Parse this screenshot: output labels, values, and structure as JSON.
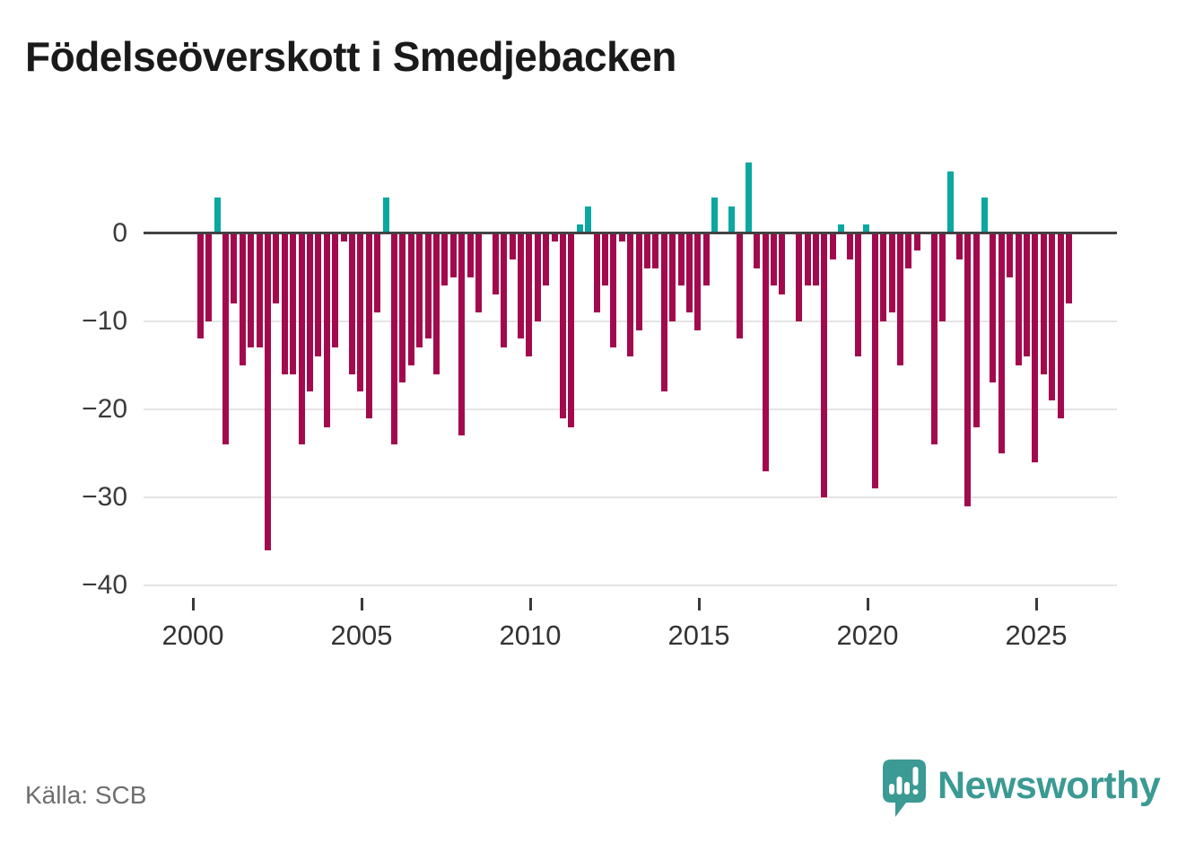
{
  "title": "Födelseöverskott i Smedjebacken",
  "source": "Källa: SCB",
  "logo": {
    "text": "Newsworthy",
    "icon": "newsworthy-speech-bubble-bar-chart-icon"
  },
  "colors": {
    "negative_bar": "#a30a4d",
    "positive_bar": "#0aa8a0",
    "axis": "#424242",
    "grid": "#e4e4e4",
    "title_text": "#1a1a1a",
    "tick_text": "#3a3a3a",
    "source_text": "#6e6e6e",
    "logo_teal": "#3b9a93"
  },
  "axes": {
    "y_tick_labels": [
      "0",
      "−10",
      "−20",
      "−30",
      "−40"
    ],
    "x_tick_labels": [
      "2000",
      "2005",
      "2010",
      "2015",
      "2020",
      "2025"
    ]
  },
  "chart_data": {
    "type": "bar",
    "title": "Födelseöverskott i Smedjebacken",
    "xlabel": "",
    "ylabel": "",
    "ylim": [
      -40,
      10
    ],
    "y_ticks": [
      0,
      -10,
      -20,
      -30,
      -40
    ],
    "x_ticks": [
      2000,
      2005,
      2010,
      2015,
      2020,
      2025
    ],
    "grid": true,
    "legend_position": "none",
    "x_unit": "quarter",
    "x": [
      "2000-Q1",
      "2000-Q2",
      "2000-Q3",
      "2000-Q4",
      "2001-Q1",
      "2001-Q2",
      "2001-Q3",
      "2001-Q4",
      "2002-Q1",
      "2002-Q2",
      "2002-Q3",
      "2002-Q4",
      "2003-Q1",
      "2003-Q2",
      "2003-Q3",
      "2003-Q4",
      "2004-Q1",
      "2004-Q2",
      "2004-Q3",
      "2004-Q4",
      "2005-Q1",
      "2005-Q2",
      "2005-Q3",
      "2005-Q4",
      "2006-Q1",
      "2006-Q2",
      "2006-Q3",
      "2006-Q4",
      "2007-Q1",
      "2007-Q2",
      "2007-Q3",
      "2007-Q4",
      "2008-Q1",
      "2008-Q2",
      "2008-Q3",
      "2008-Q4",
      "2009-Q1",
      "2009-Q2",
      "2009-Q3",
      "2009-Q4",
      "2010-Q1",
      "2010-Q2",
      "2010-Q3",
      "2010-Q4",
      "2011-Q1",
      "2011-Q2",
      "2011-Q3",
      "2011-Q4",
      "2012-Q1",
      "2012-Q2",
      "2012-Q3",
      "2012-Q4",
      "2013-Q1",
      "2013-Q2",
      "2013-Q3",
      "2013-Q4",
      "2014-Q1",
      "2014-Q2",
      "2014-Q3",
      "2014-Q4",
      "2015-Q1",
      "2015-Q2",
      "2015-Q3",
      "2015-Q4",
      "2016-Q1",
      "2016-Q2",
      "2016-Q3",
      "2016-Q4",
      "2017-Q1",
      "2017-Q2",
      "2017-Q3",
      "2017-Q4",
      "2018-Q1",
      "2018-Q2",
      "2018-Q3",
      "2018-Q4",
      "2019-Q1",
      "2019-Q2",
      "2019-Q3",
      "2019-Q4",
      "2020-Q1",
      "2020-Q2",
      "2020-Q3",
      "2020-Q4",
      "2021-Q1",
      "2021-Q2",
      "2021-Q3",
      "2021-Q4",
      "2022-Q1",
      "2022-Q2",
      "2022-Q3",
      "2022-Q4",
      "2023-Q1",
      "2023-Q2",
      "2023-Q3",
      "2023-Q4",
      "2024-Q1",
      "2024-Q2",
      "2024-Q3",
      "2024-Q4",
      "2025-Q1",
      "2025-Q2",
      "2025-Q3",
      "2025-Q4"
    ],
    "values": [
      -12,
      -10,
      4,
      -24,
      -8,
      -15,
      -13,
      -13,
      -36,
      -8,
      -16,
      -16,
      -24,
      -18,
      -14,
      -22,
      -13,
      -1,
      -16,
      -18,
      -21,
      -9,
      4,
      -24,
      -17,
      -15,
      -13,
      -12,
      -16,
      -6,
      -5,
      -23,
      -5,
      -9,
      0,
      -7,
      -13,
      -3,
      -12,
      -14,
      -10,
      -6,
      -1,
      -21,
      -22,
      1,
      3,
      -9,
      -6,
      -13,
      -1,
      -14,
      -11,
      -4,
      -4,
      -18,
      -10,
      -6,
      -9,
      -11,
      -6,
      4,
      0,
      3,
      -12,
      8,
      -4,
      -27,
      -6,
      -7,
      0,
      -10,
      -6,
      -6,
      -30,
      -3,
      1,
      -3,
      -14,
      1,
      -29,
      -10,
      -9,
      -15,
      -4,
      -2,
      0,
      -24,
      -10,
      7,
      -3,
      -31,
      -22,
      4,
      -17,
      -25,
      -5,
      -15,
      -14,
      -26,
      -16,
      -19,
      -21,
      -8
    ]
  }
}
